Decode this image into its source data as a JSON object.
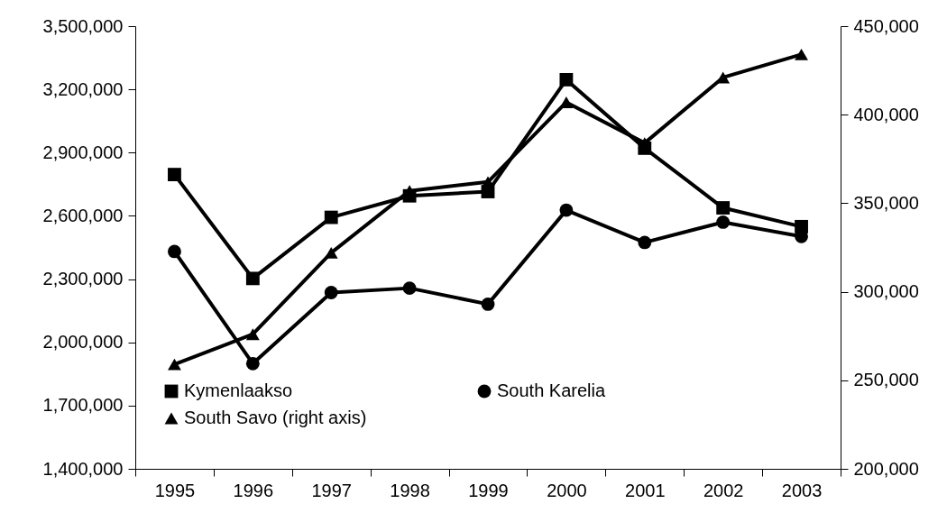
{
  "chart_data": {
    "type": "line",
    "categories": [
      "1995",
      "1996",
      "1997",
      "1998",
      "1999",
      "2000",
      "2001",
      "2002",
      "2003"
    ],
    "series": [
      {
        "name": "Kymenlaakso",
        "color": "#000000",
        "marker": "square",
        "values": [
          2796000,
          2303000,
          2593000,
          2695000,
          2715000,
          3246000,
          2921000,
          2638000,
          2549000
        ]
      },
      {
        "name": "South Karelia",
        "color": "#000000",
        "marker": "circle",
        "values": [
          2431000,
          1899000,
          2236000,
          2257000,
          2181000,
          2627000,
          2474000,
          2570000,
          2502000
        ]
      },
      {
        "name": "South Savo (right axis)",
        "color": "#000000",
        "marker": "triangle",
        "axis": "y2",
        "values": [
          259000,
          276000,
          322000,
          357000,
          362000,
          407000,
          384000,
          421000,
          434000
        ]
      }
    ],
    "ylim": [
      1400000,
      3500000
    ],
    "yticks": [
      {
        "value": 1400000,
        "label": "1,400,000"
      },
      {
        "value": 1700000,
        "label": "1,700,000"
      },
      {
        "value": 2000000,
        "label": "2,000,000"
      },
      {
        "value": 2300000,
        "label": "2,300,000"
      },
      {
        "value": 2600000,
        "label": "2,600,000"
      },
      {
        "value": 2900000,
        "label": "2,900,000"
      },
      {
        "value": 3200000,
        "label": "3,200,000"
      },
      {
        "value": 3500000,
        "label": "3,500,000"
      }
    ],
    "y2lim": [
      200000,
      450000
    ],
    "y2ticks": [
      {
        "value": 200000,
        "label": "200,000"
      },
      {
        "value": 250000,
        "label": "250,000"
      },
      {
        "value": 300000,
        "label": "300,000"
      },
      {
        "value": 350000,
        "label": "350,000"
      },
      {
        "value": 400000,
        "label": "400,000"
      },
      {
        "value": 450000,
        "label": "450,000"
      }
    ],
    "grid": false,
    "legend": "bottom left",
    "line_style": "solid"
  }
}
